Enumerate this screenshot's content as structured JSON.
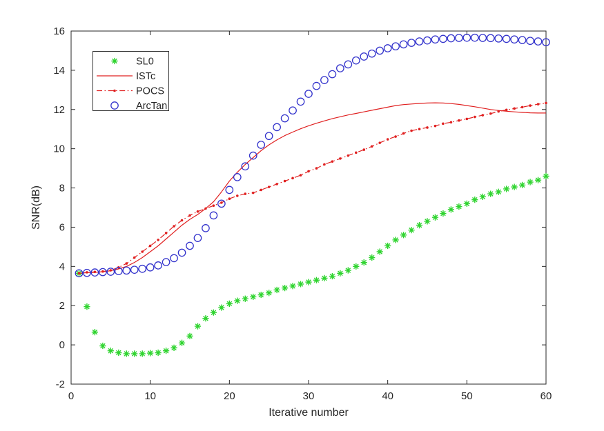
{
  "page": {
    "background": "#ffffff"
  },
  "chart_data": {
    "type": "line",
    "title": "",
    "xlabel": "Iterative number",
    "ylabel": "SNR(dB)",
    "xlim": [
      0,
      60
    ],
    "ylim": [
      -2,
      16
    ],
    "xticks": [
      0,
      10,
      20,
      30,
      40,
      50,
      60
    ],
    "yticks": [
      -2,
      0,
      2,
      4,
      6,
      8,
      10,
      12,
      14,
      16
    ],
    "grid": false,
    "legend_position": "top-left-inside",
    "axis_color": "#262626",
    "x": [
      1,
      2,
      3,
      4,
      5,
      6,
      7,
      8,
      9,
      10,
      11,
      12,
      13,
      14,
      15,
      16,
      17,
      18,
      19,
      20,
      21,
      22,
      23,
      24,
      25,
      26,
      27,
      28,
      29,
      30,
      31,
      32,
      33,
      34,
      35,
      36,
      37,
      38,
      39,
      40,
      41,
      42,
      43,
      44,
      45,
      46,
      47,
      48,
      49,
      50,
      51,
      52,
      53,
      54,
      55,
      56,
      57,
      58,
      59,
      60
    ],
    "series": [
      {
        "name": "SL0",
        "color": "#2fd42f",
        "line": "none",
        "marker": "asterisk",
        "values": [
          3.65,
          1.95,
          0.65,
          -0.05,
          -0.3,
          -0.4,
          -0.45,
          -0.45,
          -0.45,
          -0.42,
          -0.4,
          -0.3,
          -0.15,
          0.1,
          0.45,
          0.95,
          1.35,
          1.65,
          1.9,
          2.1,
          2.25,
          2.35,
          2.45,
          2.55,
          2.65,
          2.8,
          2.9,
          3.0,
          3.1,
          3.2,
          3.3,
          3.4,
          3.5,
          3.65,
          3.8,
          4.0,
          4.2,
          4.45,
          4.75,
          5.05,
          5.35,
          5.6,
          5.85,
          6.1,
          6.3,
          6.5,
          6.7,
          6.9,
          7.05,
          7.2,
          7.4,
          7.55,
          7.7,
          7.8,
          7.95,
          8.05,
          8.15,
          8.3,
          8.4,
          8.6
        ]
      },
      {
        "name": "ISTc",
        "color": "#e02020",
        "line": "solid",
        "marker": "none",
        "values": [
          3.65,
          3.68,
          3.7,
          3.73,
          3.78,
          3.87,
          4.0,
          4.2,
          4.45,
          4.75,
          5.05,
          5.4,
          5.75,
          6.1,
          6.4,
          6.65,
          6.95,
          7.3,
          7.8,
          8.35,
          8.8,
          9.2,
          9.55,
          9.9,
          10.2,
          10.45,
          10.67,
          10.85,
          11.02,
          11.17,
          11.3,
          11.42,
          11.53,
          11.63,
          11.72,
          11.8,
          11.88,
          11.96,
          12.04,
          12.12,
          12.2,
          12.25,
          12.28,
          12.31,
          12.33,
          12.34,
          12.33,
          12.3,
          12.26,
          12.2,
          12.14,
          12.07,
          12.0,
          11.95,
          11.91,
          11.88,
          11.85,
          11.83,
          11.82,
          11.82
        ]
      },
      {
        "name": "POCS",
        "color": "#e02020",
        "line": "dashdot",
        "marker": "dot",
        "values": [
          3.65,
          3.7,
          3.72,
          3.74,
          3.8,
          3.95,
          4.15,
          4.45,
          4.75,
          5.05,
          5.35,
          5.7,
          6.05,
          6.35,
          6.6,
          6.8,
          6.95,
          7.1,
          7.25,
          7.45,
          7.6,
          7.7,
          7.75,
          7.9,
          8.05,
          8.2,
          8.35,
          8.5,
          8.65,
          8.85,
          9.0,
          9.2,
          9.35,
          9.5,
          9.65,
          9.8,
          9.95,
          10.12,
          10.3,
          10.48,
          10.62,
          10.78,
          10.92,
          11.0,
          11.08,
          11.16,
          11.28,
          11.35,
          11.44,
          11.52,
          11.62,
          11.71,
          11.79,
          11.9,
          11.98,
          12.05,
          12.12,
          12.2,
          12.27,
          12.33
        ]
      },
      {
        "name": "ArcTan",
        "color": "#3333cc",
        "line": "none",
        "marker": "circle",
        "values": [
          3.65,
          3.67,
          3.69,
          3.71,
          3.73,
          3.76,
          3.79,
          3.83,
          3.88,
          3.95,
          4.05,
          4.22,
          4.42,
          4.7,
          5.05,
          5.45,
          5.95,
          6.6,
          7.2,
          7.9,
          8.55,
          9.1,
          9.65,
          10.2,
          10.65,
          11.1,
          11.55,
          11.95,
          12.4,
          12.8,
          13.2,
          13.5,
          13.8,
          14.1,
          14.3,
          14.5,
          14.7,
          14.85,
          15.0,
          15.12,
          15.22,
          15.32,
          15.4,
          15.47,
          15.52,
          15.57,
          15.6,
          15.63,
          15.65,
          15.66,
          15.66,
          15.65,
          15.64,
          15.62,
          15.6,
          15.57,
          15.54,
          15.5,
          15.47,
          15.43
        ]
      }
    ]
  }
}
